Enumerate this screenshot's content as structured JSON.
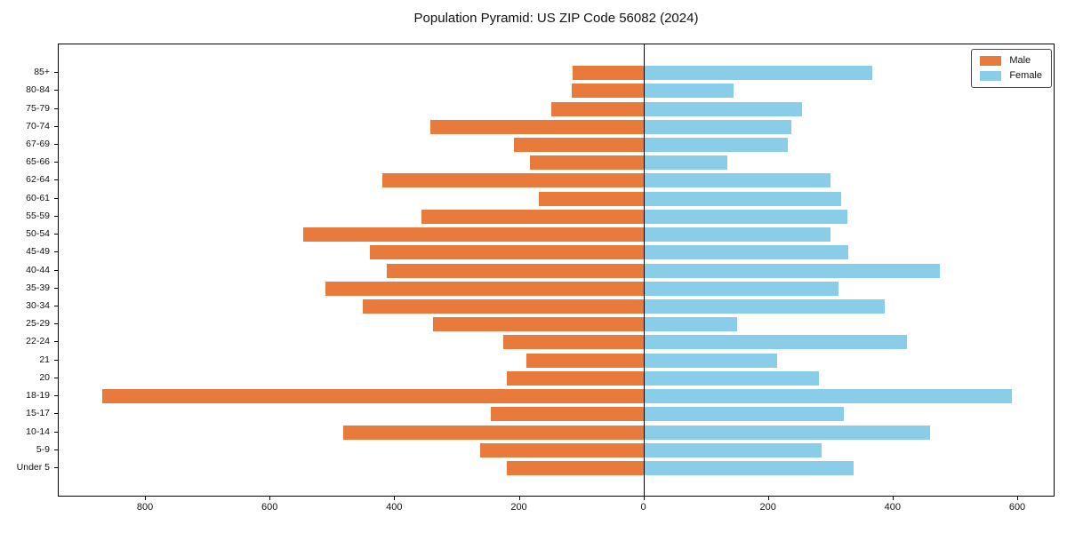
{
  "title": "Population Pyramid: US ZIP Code 56082 (2024)",
  "chart_data": {
    "type": "bar",
    "subtype": "population-pyramid",
    "orientation": "horizontal",
    "categories": [
      "85+",
      "80-84",
      "75-79",
      "70-74",
      "67-69",
      "65-66",
      "62-64",
      "60-61",
      "55-59",
      "50-54",
      "45-49",
      "40-44",
      "35-39",
      "30-34",
      "25-29",
      "22-24",
      "21",
      "20",
      "18-19",
      "15-17",
      "10-14",
      "5-9",
      "Under 5"
    ],
    "series": [
      {
        "name": "Male",
        "side": "left",
        "color": "#e87b3c",
        "values": [
          115,
          117,
          150,
          344,
          210,
          184,
          420,
          170,
          358,
          548,
          440,
          414,
          512,
          452,
          339,
          226,
          190,
          220,
          870,
          247,
          483,
          264,
          220
        ]
      },
      {
        "name": "Female",
        "side": "right",
        "color": "#89cde9",
        "values": [
          366,
          144,
          253,
          236,
          230,
          134,
          299,
          316,
          326,
          299,
          327,
          474,
          312,
          386,
          149,
          421,
          214,
          280,
          590,
          320,
          459,
          284,
          336
        ]
      }
    ],
    "xlabel": "",
    "ylabel": "",
    "xlim": [
      -940,
      660
    ],
    "x_ticks": {
      "values": [
        -800,
        -600,
        -400,
        -200,
        0,
        200,
        400,
        600
      ],
      "labels": [
        "800",
        "600",
        "400",
        "200",
        "0",
        "200",
        "400",
        "600"
      ]
    },
    "grid": false,
    "zero_line": true,
    "legend_position": "upper-right",
    "axis_color": "#000000",
    "background_color": "#ffffff"
  }
}
